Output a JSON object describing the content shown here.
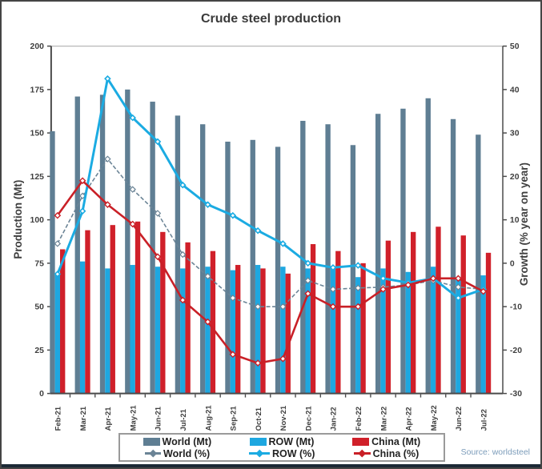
{
  "source": "Source: worldsteel",
  "chart_data": {
    "type": "combo bar+line",
    "title": "Crude steel production",
    "categories": [
      "Feb-21",
      "Mar-21",
      "Apr-21",
      "May-21",
      "Jun-21",
      "Jul-21",
      "Aug-21",
      "Sep-21",
      "Oct-21",
      "Nov-21",
      "Dec-21",
      "Jan-22",
      "Feb-22",
      "Mar-22",
      "Apr-22",
      "May-22",
      "Jun-22",
      "Jul-22"
    ],
    "bar_series": [
      {
        "name": "World (Mt)",
        "axis": "left",
        "color": "#5f7e93",
        "values": [
          151,
          171,
          172,
          175,
          168,
          160,
          155,
          145,
          146,
          142,
          157,
          155,
          143,
          161,
          164,
          170,
          158,
          149
        ]
      },
      {
        "name": "ROW (Mt)",
        "axis": "left",
        "color": "#1ea7e0",
        "values": [
          68,
          76,
          72,
          74,
          73,
          72,
          73,
          71,
          74,
          73,
          72,
          73,
          67,
          72,
          70,
          73,
          67,
          68
        ]
      },
      {
        "name": "China (Mt)",
        "axis": "left",
        "color": "#d0202a",
        "values": [
          83,
          94,
          97,
          99,
          93,
          87,
          82,
          74,
          72,
          69,
          86,
          82,
          75,
          88,
          93,
          96,
          91,
          81
        ]
      }
    ],
    "line_series": [
      {
        "name": "World (%)",
        "axis": "right",
        "color": "#6b8496",
        "style": "dashed",
        "values": [
          4.5,
          15.5,
          24,
          17,
          11.5,
          2,
          -3,
          -8,
          -10,
          -10,
          -4,
          -6,
          -5.7,
          -5.5,
          -5,
          -4,
          -5.5,
          -6
        ]
      },
      {
        "name": "ROW (%)",
        "axis": "right",
        "color": "#1babe2",
        "style": "solid",
        "values": [
          -2.5,
          12,
          42.5,
          33.5,
          28,
          18,
          13.5,
          11,
          7.5,
          4.5,
          0,
          -1,
          -0.5,
          -3.5,
          -4.5,
          -3.5,
          -8,
          -6
        ]
      },
      {
        "name": "China (%)",
        "axis": "right",
        "color": "#c92027",
        "style": "solid",
        "values": [
          11,
          19,
          13.5,
          9,
          1.5,
          -8.5,
          -13.5,
          -21,
          -23,
          -22,
          -7,
          -10,
          -10,
          -6,
          -5,
          -3.5,
          -3.5,
          -6.5
        ]
      }
    ],
    "y_left": {
      "title": "Production (Mt)",
      "min": 0,
      "max": 200,
      "ticks": [
        0,
        25,
        50,
        75,
        100,
        125,
        150,
        175,
        200
      ]
    },
    "y_right": {
      "title": "Growth (% year on year)",
      "min": -30,
      "max": 50,
      "ticks": [
        -30,
        -20,
        -10,
        0,
        10,
        20,
        30,
        40,
        50
      ]
    },
    "legend_position": "bottom",
    "grid": false
  }
}
